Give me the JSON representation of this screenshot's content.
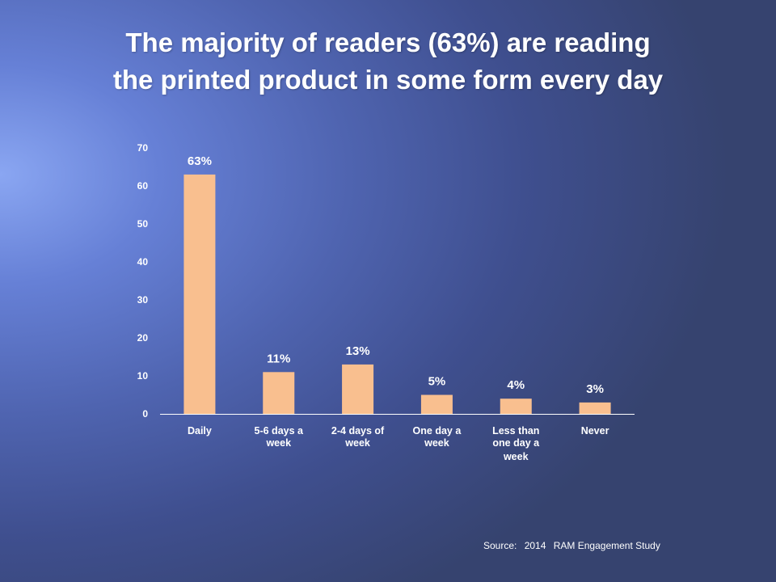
{
  "title": {
    "line1": "The majority of readers (63%) are reading",
    "line2": "the printed product in some form every day"
  },
  "source": {
    "label": "Source:",
    "year": "2014",
    "study": "RAM Engagement Study"
  },
  "colors": {
    "bar": "#f9bf8f",
    "axis_text": "#ffffff",
    "axis_line": "#ffffff"
  },
  "chart_data": {
    "type": "bar",
    "categories": [
      [
        "Daily"
      ],
      [
        "5-6 days a",
        "week"
      ],
      [
        "2-4 days of",
        "week"
      ],
      [
        "One day a",
        "week"
      ],
      [
        "Less than",
        "one day a",
        "week"
      ],
      [
        "Never"
      ]
    ],
    "values": [
      63,
      11,
      13,
      5,
      4,
      3
    ],
    "data_labels": [
      "63%",
      "11%",
      "13%",
      "5%",
      "4%",
      "3%"
    ],
    "yticks": [
      0,
      10,
      20,
      30,
      40,
      50,
      60,
      70
    ],
    "ylim": [
      0,
      70
    ],
    "grid": false,
    "legend": "none"
  }
}
